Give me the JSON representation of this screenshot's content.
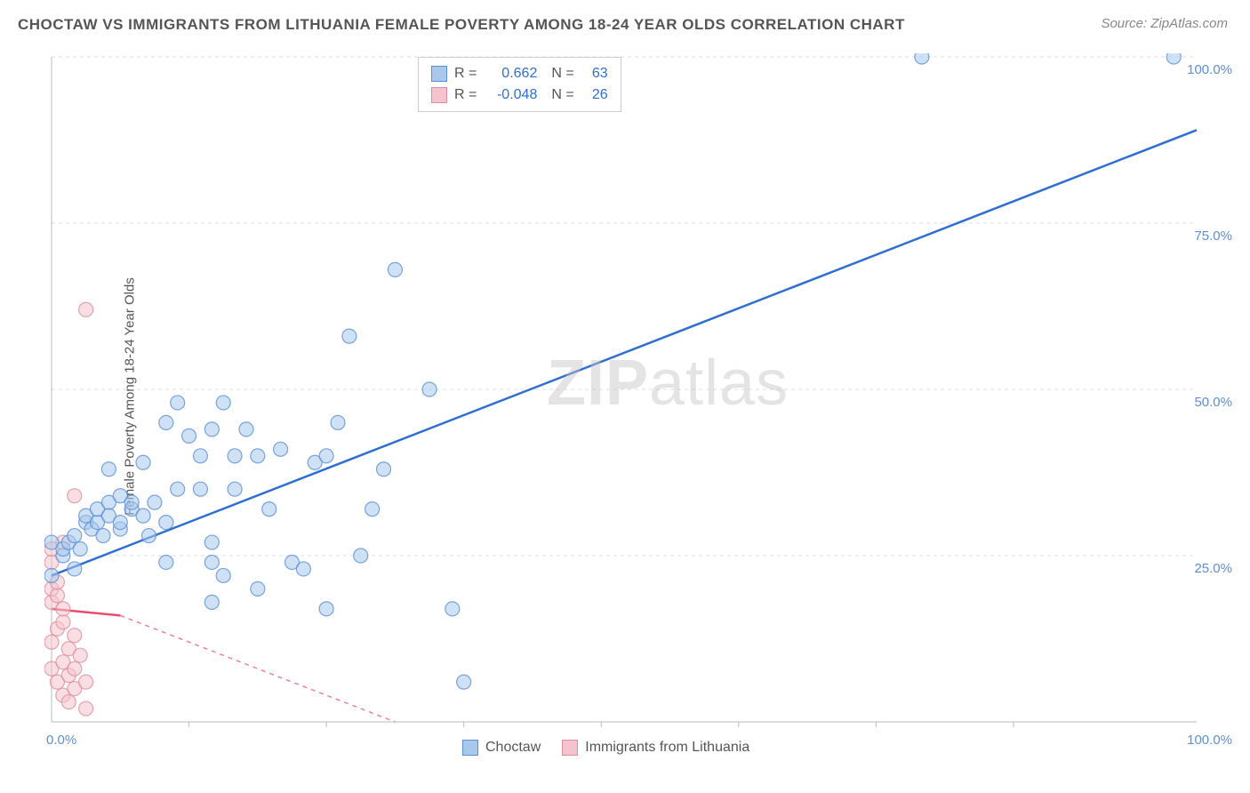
{
  "title": "CHOCTAW VS IMMIGRANTS FROM LITHUANIA FEMALE POVERTY AMONG 18-24 YEAR OLDS CORRELATION CHART",
  "source": "Source: ZipAtlas.com",
  "y_axis_label": "Female Poverty Among 18-24 Year Olds",
  "watermark_a": "ZIP",
  "watermark_b": "atlas",
  "stats": {
    "series1": {
      "r_label": "R =",
      "r": "0.662",
      "n_label": "N =",
      "n": "63"
    },
    "series2": {
      "r_label": "R =",
      "r": "-0.048",
      "n_label": "N =",
      "n": "26"
    }
  },
  "legend": {
    "series1": "Choctaw",
    "series2": "Immigrants from Lithuania"
  },
  "colors": {
    "series1_fill": "#a8c8ec",
    "series1_stroke": "#5b8fd6",
    "series1_line": "#2f6fd0",
    "series2_fill": "#f4c4ce",
    "series2_stroke": "#e08ca0",
    "series2_line": "#e74c6f",
    "grid": "#dddddd",
    "axis": "#bbbbbb",
    "tick_label_blue": "#5b8fd6",
    "stat_value": "#2f6fd0",
    "title": "#555555",
    "source": "#888888",
    "background": "#ffffff"
  },
  "chart": {
    "type": "scatter",
    "xlim": [
      0,
      100
    ],
    "ylim": [
      0,
      100
    ],
    "y_ticks": [
      25,
      50,
      75,
      100
    ],
    "y_tick_labels": [
      "25.0%",
      "50.0%",
      "75.0%",
      "100.0%"
    ],
    "x_ticks": [
      0,
      100
    ],
    "x_tick_labels": [
      "0.0%",
      "100.0%"
    ],
    "x_minor_ticks": [
      12,
      24,
      36,
      48,
      60,
      72,
      84
    ],
    "marker_radius": 8,
    "marker_opacity": 0.55,
    "line_width": 2.5,
    "series1_line": {
      "x1": 0,
      "y1": 22,
      "x2": 100,
      "y2": 89
    },
    "series2_line_solid": {
      "x1": 0,
      "y1": 17,
      "x2": 6,
      "y2": 16
    },
    "series2_line_dash": {
      "x1": 6,
      "y1": 16,
      "x2": 30,
      "y2": 0
    },
    "series1_points": [
      [
        0,
        22
      ],
      [
        0,
        27
      ],
      [
        1,
        25
      ],
      [
        1,
        26
      ],
      [
        1.5,
        27
      ],
      [
        2,
        28
      ],
      [
        2,
        23
      ],
      [
        2.5,
        26
      ],
      [
        3,
        30
      ],
      [
        3,
        31
      ],
      [
        3.5,
        29
      ],
      [
        4,
        30
      ],
      [
        4,
        32
      ],
      [
        4.5,
        28
      ],
      [
        5,
        33
      ],
      [
        5,
        38
      ],
      [
        5,
        31
      ],
      [
        6,
        34
      ],
      [
        6,
        29
      ],
      [
        6,
        30
      ],
      [
        7,
        32
      ],
      [
        7,
        33
      ],
      [
        8,
        31
      ],
      [
        8,
        39
      ],
      [
        8.5,
        28
      ],
      [
        9,
        33
      ],
      [
        10,
        30
      ],
      [
        10,
        24
      ],
      [
        10,
        45
      ],
      [
        11,
        48
      ],
      [
        11,
        35
      ],
      [
        12,
        43
      ],
      [
        13,
        40
      ],
      [
        13,
        35
      ],
      [
        14,
        27
      ],
      [
        14,
        24
      ],
      [
        14,
        44
      ],
      [
        14,
        18
      ],
      [
        15,
        22
      ],
      [
        15,
        48
      ],
      [
        16,
        35
      ],
      [
        16,
        40
      ],
      [
        17,
        44
      ],
      [
        18,
        40
      ],
      [
        18,
        20
      ],
      [
        19,
        32
      ],
      [
        20,
        41
      ],
      [
        21,
        24
      ],
      [
        22,
        23
      ],
      [
        23,
        39
      ],
      [
        24,
        40
      ],
      [
        24,
        17
      ],
      [
        25,
        45
      ],
      [
        26,
        58
      ],
      [
        27,
        25
      ],
      [
        28,
        32
      ],
      [
        29,
        38
      ],
      [
        30,
        68
      ],
      [
        33,
        50
      ],
      [
        35,
        17
      ],
      [
        36,
        6
      ],
      [
        76,
        100
      ],
      [
        98,
        100
      ]
    ],
    "series2_points": [
      [
        0,
        8
      ],
      [
        0,
        12
      ],
      [
        0,
        18
      ],
      [
        0,
        20
      ],
      [
        0,
        24
      ],
      [
        0,
        26
      ],
      [
        0.5,
        6
      ],
      [
        0.5,
        14
      ],
      [
        0.5,
        19
      ],
      [
        0.5,
        21
      ],
      [
        1,
        4
      ],
      [
        1,
        9
      ],
      [
        1,
        15
      ],
      [
        1,
        17
      ],
      [
        1,
        27
      ],
      [
        1.5,
        3
      ],
      [
        1.5,
        7
      ],
      [
        1.5,
        11
      ],
      [
        2,
        5
      ],
      [
        2,
        8
      ],
      [
        2,
        13
      ],
      [
        2,
        34
      ],
      [
        2.5,
        10
      ],
      [
        3,
        2
      ],
      [
        3,
        6
      ],
      [
        3,
        62
      ]
    ]
  }
}
